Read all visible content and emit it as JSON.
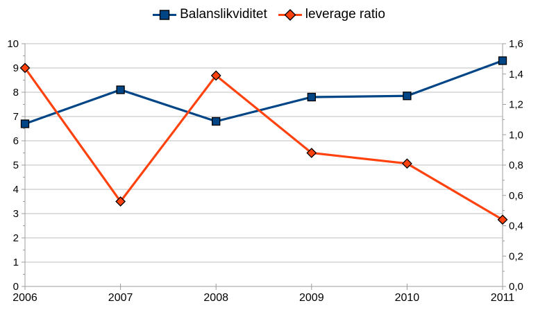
{
  "legend": {
    "items": [
      {
        "label": "Balanslikviditet",
        "marker": "square",
        "color": "#004586"
      },
      {
        "label": "leverage ratio",
        "marker": "diamond",
        "color": "#FF420E"
      }
    ]
  },
  "chart_data": {
    "type": "line",
    "title": "",
    "x_categories": [
      "2006",
      "2007",
      "2008",
      "2009",
      "2010",
      "2011"
    ],
    "series": [
      {
        "name": "Balanslikviditet",
        "axis": "left",
        "marker": "square",
        "color": "#004586",
        "values": [
          6.7,
          8.1,
          6.8,
          7.8,
          7.85,
          9.3
        ]
      },
      {
        "name": "leverage ratio",
        "axis": "right",
        "marker": "diamond",
        "color": "#FF420E",
        "values": [
          1.44,
          0.56,
          1.39,
          0.88,
          0.81,
          0.44
        ]
      }
    ],
    "left_axis": {
      "min": 0,
      "max": 10,
      "major_step": 1,
      "minor_step": 0.5,
      "tick_labels": [
        "0",
        "1",
        "2",
        "3",
        "4",
        "5",
        "6",
        "7",
        "8",
        "9",
        "10"
      ]
    },
    "right_axis": {
      "min": 0,
      "max": 1.6,
      "major_step": 0.2,
      "minor_step": 0.1,
      "tick_labels": [
        "0,0",
        "0,2",
        "0,4",
        "0,6",
        "0,8",
        "1,0",
        "1,2",
        "1,4",
        "1,6"
      ]
    },
    "grid": {
      "horizontal": true,
      "vertical": false
    },
    "legend_position": "top",
    "colors": {
      "grid": "#bdbdbd",
      "axis": "#9c9c9c",
      "text": "#000000",
      "background": "#ffffff",
      "marker_border": "#000000"
    }
  }
}
